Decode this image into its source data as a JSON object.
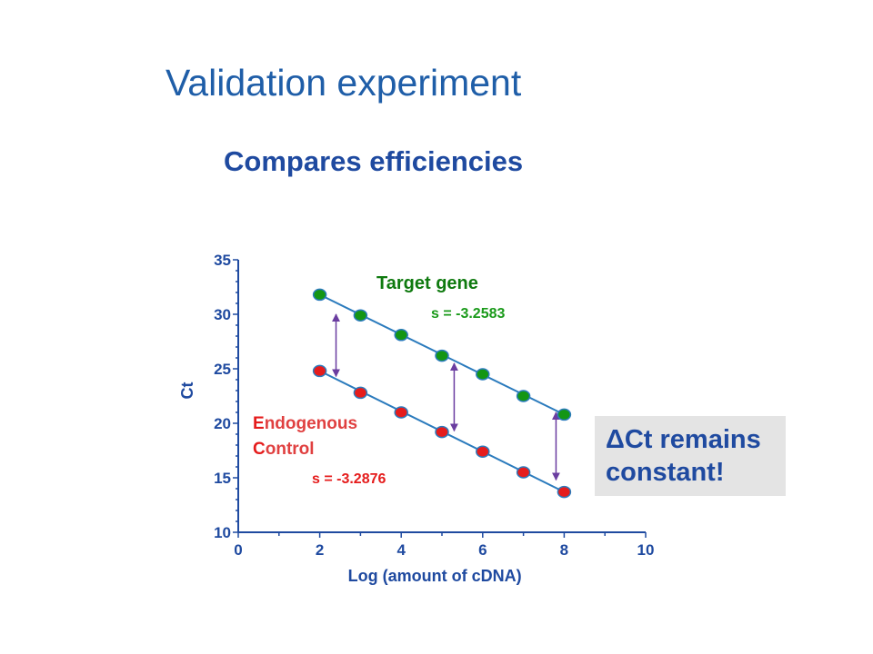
{
  "slide": {
    "title": "Validation experiment",
    "subtitle": "Compares efficiencies"
  },
  "callout": {
    "line1": "ΔCt remains",
    "line2": "constant!"
  },
  "colors": {
    "title": "#1f5ea8",
    "axis": "#1f4aa0",
    "line": "#2b7bbd",
    "target": "#149614",
    "control": "#e51c1c",
    "arrow": "#6a3da0",
    "callout_bg": "#e4e4e4"
  },
  "chart_data": {
    "type": "scatter",
    "xlabel": "Log (amount of cDNA)",
    "ylabel": "Ct",
    "xlim": [
      0,
      10
    ],
    "ylim": [
      10,
      35
    ],
    "xticks": [
      0,
      2,
      4,
      6,
      8,
      10
    ],
    "yticks": [
      10,
      15,
      20,
      25,
      30,
      35
    ],
    "grid": false,
    "series": [
      {
        "name": "Target gene",
        "slope_label": "s = -3.2583",
        "color": "#149614",
        "x": [
          2,
          3,
          4,
          5,
          6,
          7,
          8
        ],
        "y": [
          31.8,
          29.9,
          28.1,
          26.2,
          24.5,
          22.5,
          20.8
        ],
        "fit": {
          "x": [
            2,
            8
          ],
          "y": [
            31.8,
            20.8
          ]
        }
      },
      {
        "name_parts": [
          {
            "letter": "E",
            "rest": "ndogenous"
          },
          {
            "letter": "C",
            "rest": "ontrol"
          }
        ],
        "slope_label": "s = -3.2876",
        "color": "#e51c1c",
        "x": [
          2,
          3,
          4,
          5,
          6,
          7,
          8
        ],
        "y": [
          24.8,
          22.8,
          21.0,
          19.2,
          17.4,
          15.5,
          13.7
        ],
        "fit": {
          "x": [
            2,
            8
          ],
          "y": [
            24.8,
            13.7
          ]
        }
      }
    ],
    "delta_arrows": [
      {
        "x": 2.4,
        "y_top": 30.0,
        "y_bottom": 24.3
      },
      {
        "x": 5.3,
        "y_top": 25.5,
        "y_bottom": 19.3
      },
      {
        "x": 7.8,
        "y_top": 21.0,
        "y_bottom": 14.8
      }
    ]
  }
}
